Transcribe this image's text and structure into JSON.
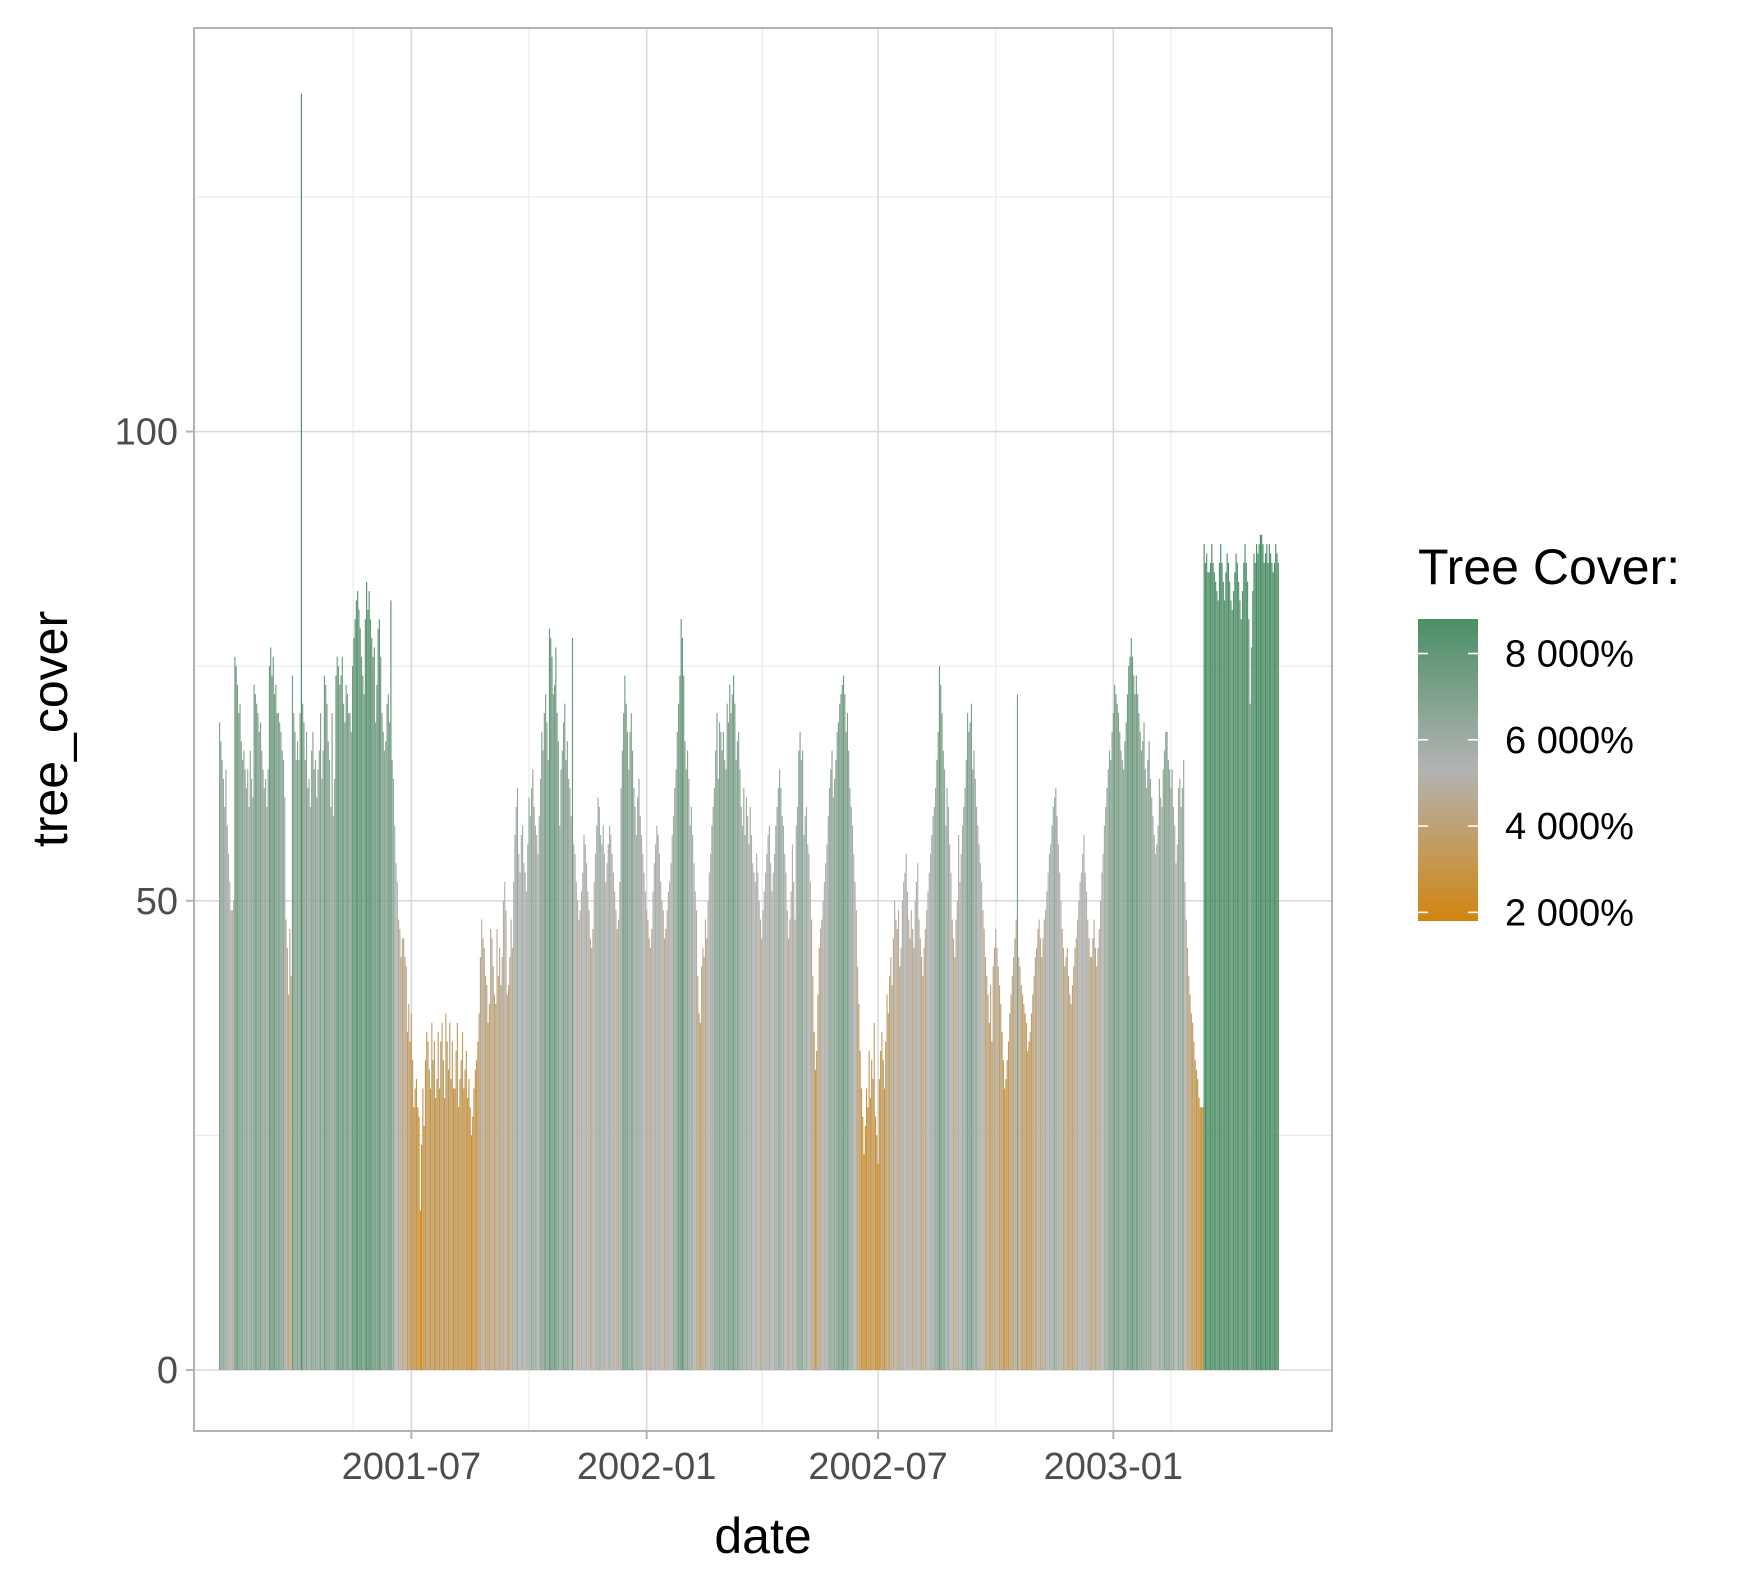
{
  "chart_data": {
    "type": "bar",
    "title": "",
    "xlabel": "date",
    "ylabel": "tree_cover",
    "x_range": [
      "2001-01-12",
      "2003-06-21"
    ],
    "ylim": [
      -6.5,
      143
    ],
    "x_ticks": [
      "2001-07",
      "2002-01",
      "2002-07",
      "2003-01"
    ],
    "y_ticks": [
      0,
      50,
      100
    ],
    "grid": true,
    "fill_scale": {
      "title": "Tree Cover:",
      "labels": [
        "8 000%",
        "6 000%",
        "4 000%",
        "2 000%"
      ],
      "label_values": [
        80,
        60,
        40,
        20
      ],
      "colors": [
        "#d08510",
        "#b3b3b3",
        "#4a8f65"
      ],
      "limits": [
        18,
        88
      ],
      "placement": "right"
    },
    "series": [
      {
        "x_start": "2001-02-01",
        "x_step_days": 1,
        "values": [
          69,
          67,
          65,
          63,
          60,
          64,
          58,
          55,
          52,
          49,
          49,
          50,
          76,
          75,
          73,
          70,
          71,
          67,
          65,
          66,
          64,
          62,
          64,
          60,
          66,
          63,
          61,
          73,
          72,
          71,
          70,
          68,
          69,
          66,
          64,
          62,
          63,
          60,
          64,
          75,
          77,
          74,
          76,
          72,
          73,
          70,
          70,
          69,
          68,
          66,
          65,
          61,
          48,
          45,
          40,
          47,
          42,
          74,
          70,
          68,
          65,
          67,
          65,
          70,
          136,
          71,
          69,
          65,
          68,
          62,
          63,
          60,
          66,
          68,
          64,
          65,
          61,
          64,
          66,
          70,
          63,
          66,
          74,
          73,
          71,
          67,
          65,
          60,
          70,
          59,
          63,
          74,
          76,
          75,
          73,
          74,
          76,
          71,
          69,
          73,
          72,
          70,
          70,
          68,
          75,
          78,
          80,
          82,
          83,
          81,
          79,
          76,
          74,
          72,
          80,
          84,
          81,
          83,
          80,
          78,
          76,
          77,
          69,
          73,
          79,
          80,
          76,
          70,
          68,
          66,
          67,
          71,
          72,
          69,
          82,
          65,
          63,
          58,
          54,
          52,
          48,
          47,
          44,
          46,
          46,
          44,
          43,
          36,
          39,
          35,
          38,
          33,
          28,
          30,
          31,
          28,
          27,
          17,
          24,
          30,
          26,
          33,
          36,
          35,
          32,
          30,
          37,
          33,
          35,
          29,
          31,
          36,
          30,
          35,
          37,
          33,
          29,
          38,
          35,
          32,
          37,
          31,
          35,
          30,
          30,
          34,
          37,
          28,
          31,
          33,
          36,
          30,
          32,
          34,
          29,
          31,
          28,
          25,
          27,
          30,
          32,
          33,
          35,
          38,
          44,
          48,
          46,
          45,
          42,
          41,
          37,
          39,
          47,
          46,
          43,
          40,
          39,
          47,
          42,
          45,
          41,
          44,
          50,
          52,
          49,
          40,
          41,
          44,
          48,
          45,
          52,
          57,
          60,
          62,
          55,
          53,
          57,
          58,
          54,
          53,
          51,
          56,
          61,
          59,
          62,
          64,
          60,
          58,
          57,
          55,
          59,
          63,
          68,
          66,
          70,
          72,
          69,
          65,
          79,
          78,
          76,
          72,
          73,
          77,
          70,
          67,
          58,
          64,
          66,
          69,
          71,
          65,
          67,
          63,
          62,
          59,
          78,
          56,
          55,
          52,
          50,
          48,
          49,
          51,
          53,
          57,
          56,
          54,
          51,
          49,
          46,
          45,
          47,
          52,
          55,
          58,
          61,
          60,
          57,
          56,
          58,
          55,
          52,
          54,
          56,
          58,
          57,
          55,
          53,
          51,
          49,
          47,
          48,
          52,
          62,
          66,
          70,
          74,
          71,
          68,
          64,
          68,
          70,
          66,
          62,
          60,
          57,
          61,
          63,
          59,
          57,
          55,
          53,
          51,
          49,
          48,
          46,
          45,
          47,
          51,
          54,
          56,
          58,
          57,
          55,
          52,
          50,
          49,
          46,
          47,
          49,
          51,
          52,
          54,
          57,
          59,
          62,
          64,
          68,
          71,
          74,
          80,
          78,
          74,
          67,
          64,
          66,
          63,
          58,
          60,
          57,
          54,
          51,
          49,
          42,
          38,
          37,
          43,
          45,
          44,
          48,
          46,
          50,
          53,
          55,
          58,
          60,
          62,
          66,
          70,
          63,
          69,
          68,
          66,
          68,
          65,
          64,
          71,
          69,
          73,
          70,
          72,
          74,
          71,
          65,
          67,
          68,
          64,
          60,
          58,
          62,
          57,
          61,
          59,
          56,
          60,
          57,
          54,
          53,
          52,
          55,
          53,
          50,
          48,
          46,
          49,
          51,
          53,
          55,
          57,
          58,
          54,
          51,
          53,
          55,
          58,
          60,
          62,
          64,
          62,
          59,
          58,
          55,
          53,
          49,
          46,
          48,
          51,
          56,
          52,
          48,
          58,
          60,
          66,
          68,
          65,
          66,
          57,
          59,
          60,
          56,
          55,
          52,
          48,
          42,
          36,
          32,
          34,
          40,
          45,
          47,
          48,
          50,
          52,
          54,
          56,
          59,
          62,
          64,
          66,
          61,
          63,
          65,
          68,
          69,
          71,
          72,
          73,
          74,
          72,
          68,
          70,
          66,
          62,
          60,
          58,
          55,
          52,
          49,
          43,
          39,
          34,
          30,
          27,
          23,
          26,
          30,
          28,
          34,
          29,
          33,
          31,
          37,
          27,
          25,
          22,
          31,
          34,
          36,
          33,
          30,
          35,
          40,
          38,
          42,
          44,
          41,
          46,
          50,
          48,
          47,
          49,
          43,
          45,
          50,
          52,
          53,
          55,
          51,
          48,
          46,
          49,
          47,
          45,
          50,
          52,
          54,
          48,
          46,
          44,
          42,
          45,
          47,
          49,
          51,
          53,
          55,
          57,
          59,
          60,
          62,
          65,
          68,
          75,
          73,
          70,
          66,
          64,
          58,
          62,
          60,
          56,
          53,
          48,
          46,
          44,
          48,
          50,
          57,
          52,
          55,
          58,
          60,
          62,
          65,
          70,
          68,
          69,
          71,
          64,
          66,
          63,
          60,
          58,
          56,
          54,
          52,
          49,
          47,
          44,
          42,
          40,
          37,
          41,
          35,
          43,
          45,
          47,
          45,
          43,
          41,
          39,
          36,
          33,
          30,
          31,
          33,
          35,
          38,
          40,
          42,
          44,
          46,
          48,
          72,
          44,
          43,
          41,
          40,
          39,
          38,
          37,
          34,
          35,
          36,
          38,
          40,
          42,
          44,
          45,
          47,
          48,
          46,
          44,
          46,
          48,
          49,
          51,
          53,
          55,
          56,
          58,
          60,
          61,
          62,
          59,
          56,
          53,
          50,
          47,
          45,
          43,
          44,
          45,
          42,
          40,
          39,
          41,
          43,
          45,
          46,
          48,
          50,
          52,
          53,
          55,
          57,
          53,
          51,
          48,
          46,
          44,
          44,
          46,
          48,
          45,
          43,
          45,
          47,
          50,
          53,
          55,
          58,
          60,
          62,
          64,
          66,
          65,
          68,
          70,
          73,
          72,
          71,
          70,
          68,
          66,
          65,
          64,
          67,
          69,
          72,
          75,
          76,
          78,
          76,
          74,
          72,
          74,
          72,
          70,
          68,
          66,
          67,
          69,
          64,
          62,
          65,
          67,
          63,
          61,
          59,
          57,
          55,
          56,
          58,
          63,
          61,
          60,
          64,
          66,
          68,
          68,
          65,
          64,
          62,
          64,
          60,
          58,
          54,
          56,
          62,
          63,
          60,
          62,
          65,
          52,
          48,
          45,
          42,
          40,
          38,
          37,
          35,
          33,
          32,
          31,
          29,
          28,
          28,
          28,
          88,
          86,
          87,
          85,
          85,
          86,
          88,
          86,
          85,
          84,
          83,
          82,
          86,
          88,
          86,
          84,
          82,
          85,
          87,
          86,
          84,
          82,
          81,
          83,
          85,
          87,
          86,
          84,
          82,
          80,
          83,
          86,
          88,
          86,
          84,
          80,
          71,
          77,
          83,
          87,
          86,
          88,
          87,
          88,
          89,
          89,
          88,
          86,
          87,
          88,
          86,
          88,
          87,
          86,
          85,
          86,
          88,
          87,
          86
        ]
      }
    ]
  }
}
